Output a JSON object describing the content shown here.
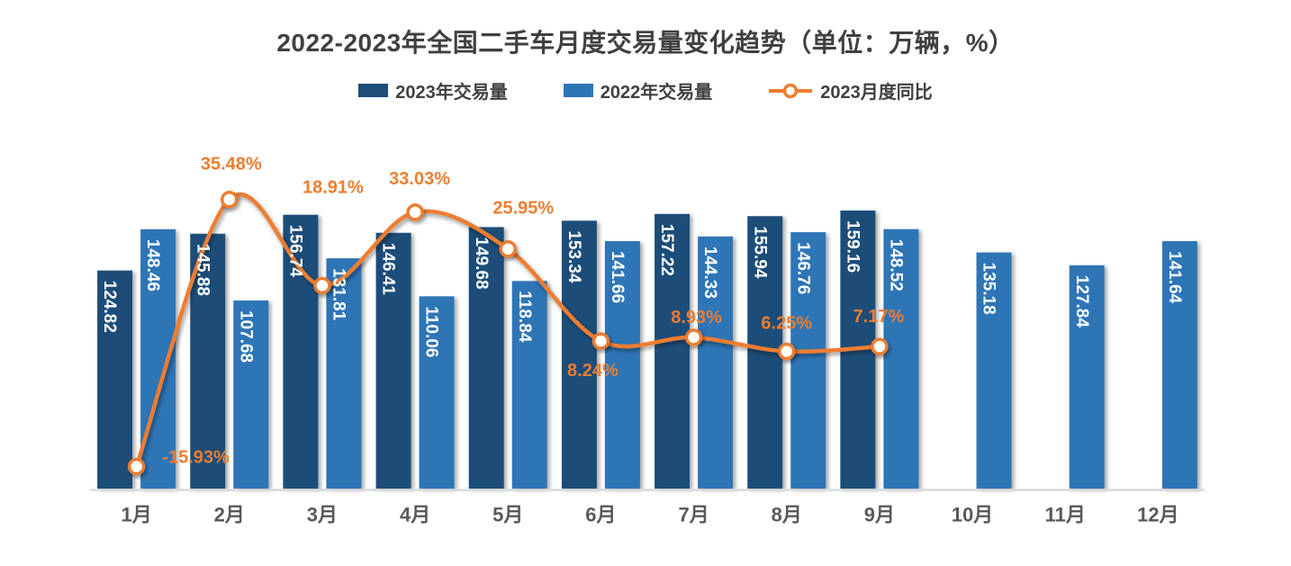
{
  "title": "2022-2023年全国二手车月度交易量变化趋势（单位：万辆，%）",
  "legend": {
    "items": [
      {
        "label": "2023年交易量",
        "marker": "dark-swatch"
      },
      {
        "label": "2022年交易量",
        "marker": "light-swatch"
      },
      {
        "label": "2023月度同比",
        "marker": "line-marker"
      }
    ]
  },
  "colors": {
    "dark_blue": "#1F4E79",
    "light_blue": "#2E75B6",
    "orange": "#ED7D31",
    "axis_line": "#D9D9D9",
    "title_text": "#404040",
    "month_text": "#595959",
    "bar_label_text": "#FFFFFF"
  },
  "chart_data": {
    "type": "bar",
    "subtype": "grouped-bars-with-line",
    "title": "2022-2023年全国二手车月度交易量变化趋势（单位：万辆，%）",
    "categories": [
      "1月",
      "2月",
      "3月",
      "4月",
      "5月",
      "6月",
      "7月",
      "8月",
      "9月",
      "10月",
      "11月",
      "12月"
    ],
    "series": [
      {
        "name": "2023年交易量",
        "type": "bar",
        "values": [
          124.82,
          145.88,
          156.74,
          146.41,
          149.68,
          153.34,
          157.22,
          155.94,
          159.16,
          null,
          null,
          null
        ]
      },
      {
        "name": "2022年交易量",
        "type": "bar",
        "values": [
          148.46,
          107.68,
          131.81,
          110.06,
          118.84,
          141.66,
          144.33,
          146.76,
          148.52,
          135.18,
          127.84,
          141.64
        ]
      },
      {
        "name": "2023月度同比",
        "type": "line",
        "unit": "%",
        "values": [
          -15.93,
          35.48,
          18.91,
          33.03,
          25.95,
          8.24,
          8.93,
          6.25,
          7.17,
          null,
          null,
          null
        ]
      }
    ],
    "bar_value_labels": {
      "2023": [
        "124.82",
        "145.88",
        "156.74",
        "146.41",
        "149.68",
        "153.34",
        "157.22",
        "155.94",
        "159.16"
      ],
      "2022": [
        "148.46",
        "107.68",
        "131.81",
        "110.06",
        "118.84",
        "141.66",
        "144.33",
        "146.76",
        "148.52",
        "135.18",
        "127.84",
        "141.64"
      ]
    },
    "line_point_labels": [
      "-15.93%",
      "35.48%",
      "18.91%",
      "33.03%",
      "25.95%",
      "8.24%",
      "8.93%",
      "6.25%",
      "7.17%"
    ],
    "ylabel": "万辆",
    "y2label": "%",
    "grid": false,
    "legend_position": "top",
    "value_axis_hidden": true
  }
}
